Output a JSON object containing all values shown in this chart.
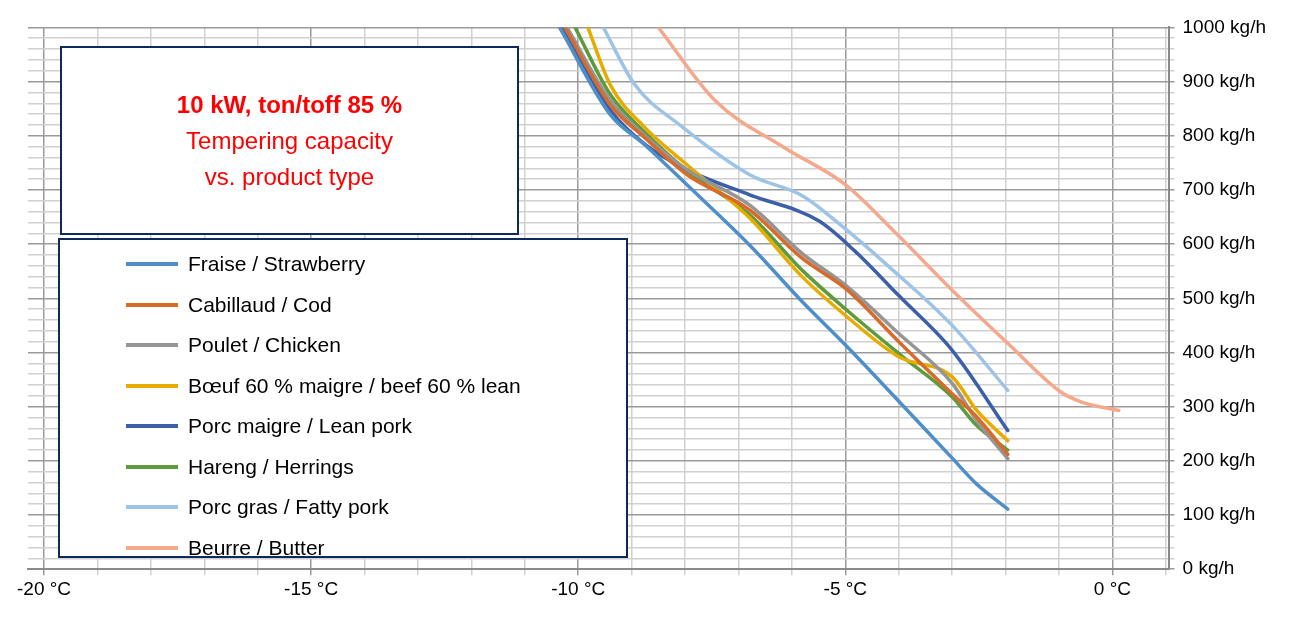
{
  "chart_data": {
    "type": "line",
    "title": "10 kW, ton/toff 85 %",
    "subtitle": "Tempering capacity vs. product type",
    "legend": "left",
    "grid": true,
    "marker": "none",
    "line_style": "solid",
    "xlim": [
      -20.3,
      1.05
    ],
    "ylim": [
      0,
      1000
    ],
    "xticks": [
      {
        "value": -20,
        "label": "-20 °C"
      },
      {
        "value": -19,
        "label": null
      },
      {
        "value": -18,
        "label": null
      },
      {
        "value": -17,
        "label": null
      },
      {
        "value": -16,
        "label": null
      },
      {
        "value": -15,
        "label": "-15 °C"
      },
      {
        "value": -14,
        "label": null
      },
      {
        "value": -13,
        "label": null
      },
      {
        "value": -12,
        "label": null
      },
      {
        "value": -11,
        "label": null
      },
      {
        "value": -10,
        "label": "-10 °C"
      },
      {
        "value": -9,
        "label": null
      },
      {
        "value": -8,
        "label": null
      },
      {
        "value": -7,
        "label": null
      },
      {
        "value": -6,
        "label": null
      },
      {
        "value": -5,
        "label": "-5 °C"
      },
      {
        "value": -4,
        "label": null
      },
      {
        "value": -3,
        "label": null
      },
      {
        "value": -2,
        "label": null
      },
      {
        "value": -1,
        "label": null
      },
      {
        "value": 0,
        "label": "0 °C"
      },
      {
        "value": 1,
        "label": null
      }
    ],
    "yticks": [
      {
        "value": 0,
        "label": "0 kg/h"
      },
      {
        "value": 20,
        "label": null
      },
      {
        "value": 40,
        "label": null
      },
      {
        "value": 60,
        "label": null
      },
      {
        "value": 80,
        "label": null
      },
      {
        "value": 100,
        "label": "100 kg/h"
      },
      {
        "value": 120,
        "label": null
      },
      {
        "value": 140,
        "label": null
      },
      {
        "value": 160,
        "label": null
      },
      {
        "value": 180,
        "label": null
      },
      {
        "value": 200,
        "label": "200 kg/h"
      },
      {
        "value": 220,
        "label": null
      },
      {
        "value": 240,
        "label": null
      },
      {
        "value": 260,
        "label": null
      },
      {
        "value": 280,
        "label": null
      },
      {
        "value": 300,
        "label": "300 kg/h"
      },
      {
        "value": 320,
        "label": null
      },
      {
        "value": 340,
        "label": null
      },
      {
        "value": 360,
        "label": null
      },
      {
        "value": 380,
        "label": null
      },
      {
        "value": 400,
        "label": "400 kg/h"
      },
      {
        "value": 420,
        "label": null
      },
      {
        "value": 440,
        "label": null
      },
      {
        "value": 460,
        "label": null
      },
      {
        "value": 480,
        "label": null
      },
      {
        "value": 500,
        "label": "500 kg/h"
      },
      {
        "value": 520,
        "label": null
      },
      {
        "value": 540,
        "label": null
      },
      {
        "value": 560,
        "label": null
      },
      {
        "value": 580,
        "label": null
      },
      {
        "value": 600,
        "label": "600 kg/h"
      },
      {
        "value": 620,
        "label": null
      },
      {
        "value": 640,
        "label": null
      },
      {
        "value": 660,
        "label": null
      },
      {
        "value": 680,
        "label": null
      },
      {
        "value": 700,
        "label": "700 kg/h"
      },
      {
        "value": 720,
        "label": null
      },
      {
        "value": 740,
        "label": null
      },
      {
        "value": 760,
        "label": null
      },
      {
        "value": 780,
        "label": null
      },
      {
        "value": 800,
        "label": "800 kg/h"
      },
      {
        "value": 820,
        "label": null
      },
      {
        "value": 840,
        "label": null
      },
      {
        "value": 860,
        "label": null
      },
      {
        "value": 880,
        "label": null
      },
      {
        "value": 900,
        "label": "900 kg/h"
      },
      {
        "value": 920,
        "label": null
      },
      {
        "value": 940,
        "label": null
      },
      {
        "value": 960,
        "label": null
      },
      {
        "value": 980,
        "label": null
      },
      {
        "value": 1000,
        "label": "1000 kg/h"
      }
    ],
    "series": [
      {
        "name": "Fraise / Strawberry",
        "color": "#4f8fc8",
        "x": [
          -10.35,
          -9.4,
          -8.75,
          -7.96,
          -6.79,
          -5.81,
          -4.97,
          -4,
          -3,
          -2.54,
          -1.96
        ],
        "values": [
          1000,
          839,
          783,
          709,
          598,
          494,
          411,
          310,
          205,
          157,
          111
        ]
      },
      {
        "name": "Cabillaud / Cod",
        "color": "#d86b2a",
        "x": [
          -10.25,
          -9.4,
          -8.75,
          -7.96,
          -6.79,
          -5.81,
          -4.97,
          -4,
          -3,
          -2.54,
          -1.96
        ],
        "values": [
          1000,
          857,
          796,
          728,
          663,
          574,
          516,
          420,
          324,
          281,
          212
        ]
      },
      {
        "name": "Poulet / Chicken",
        "color": "#959595",
        "x": [
          -10.21,
          -9.4,
          -8.75,
          -7.96,
          -6.79,
          -5.81,
          -4.97,
          -4,
          -3,
          -2.54,
          -1.96
        ],
        "values": [
          1000,
          865,
          800,
          737,
          672,
          583,
          522,
          435,
          343,
          274,
          204
        ]
      },
      {
        "name": "Bœuf 60 % maigre / beef 60 % lean",
        "color": "#e6ac00",
        "x": [
          -9.82,
          -9.4,
          -8.75,
          -7.96,
          -6.79,
          -5.81,
          -4.97,
          -4,
          -3,
          -2.54,
          -1.96
        ],
        "values": [
          1000,
          894,
          815,
          746,
          648,
          540,
          466,
          392,
          355,
          293,
          237
        ]
      },
      {
        "name": "Porc maigre / Lean pork",
        "color": "#3b60a8",
        "x": [
          -10.31,
          -9.39,
          -8.75,
          -7.96,
          -6.79,
          -5.5,
          -4.83,
          -4,
          -3,
          -1.96
        ],
        "values": [
          1000,
          846,
          784,
          737,
          691,
          643,
          588,
          505,
          404,
          256
        ]
      },
      {
        "name": "Hareng / Herrings",
        "color": "#5f9a3c",
        "x": [
          -10.06,
          -9.4,
          -8.75,
          -7.96,
          -6.79,
          -5.81,
          -4.97,
          -4,
          -3,
          -2.54,
          -1.96
        ],
        "values": [
          1000,
          876,
          806,
          735,
          654,
          552,
          478,
          398,
          318,
          265,
          220
        ]
      },
      {
        "name": "Porc gras / Fatty pork",
        "color": "#9dc3e6",
        "x": [
          -9.53,
          -8.94,
          -8.1,
          -6.79,
          -5.8,
          -5,
          -4.19,
          -3,
          -1.96
        ],
        "values": [
          1000,
          894,
          820,
          728,
          689,
          628,
          559,
          450,
          330
        ]
      },
      {
        "name": "Beurre / Butter",
        "color": "#f4a88c",
        "x": [
          -8.5,
          -7.44,
          -6.14,
          -5,
          -4,
          -3,
          -1.96,
          -0.98,
          -0.59,
          0.12
        ],
        "values": [
          1000,
          865,
          778,
          710,
          615,
          515,
          417,
          328,
          309,
          293
        ]
      }
    ]
  }
}
